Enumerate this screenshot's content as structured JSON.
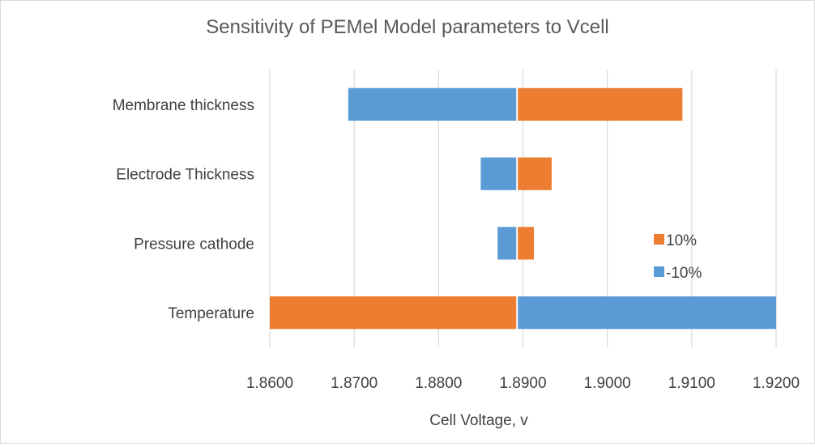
{
  "chart_data": {
    "type": "bar",
    "orientation": "horizontal",
    "title": "Sensitivity of PEMel Model parameters to Vcell",
    "xlabel": "Cell Voltage, v",
    "ylabel": "",
    "xlim": [
      1.86,
      1.92
    ],
    "x_ticks": [
      "1.8600",
      "1.8700",
      "1.8800",
      "1.8900",
      "1.9000",
      "1.9100",
      "1.9200"
    ],
    "x_tick_values": [
      1.86,
      1.87,
      1.88,
      1.89,
      1.9,
      1.91,
      1.92
    ],
    "baseline": 1.8893,
    "grid": "vertical",
    "legend_position": "right",
    "categories": [
      "Membrane thickness",
      "Electrode Thickness",
      "Pressure cathode",
      "Temperature"
    ],
    "series": [
      {
        "name": "10%",
        "color": "#ED7D31",
        "values": [
          1.9089,
          1.8934,
          1.8913,
          1.86
        ]
      },
      {
        "name": "-10%",
        "color": "#5B9BD5",
        "values": [
          1.8693,
          1.885,
          1.887,
          1.92
        ]
      }
    ]
  }
}
